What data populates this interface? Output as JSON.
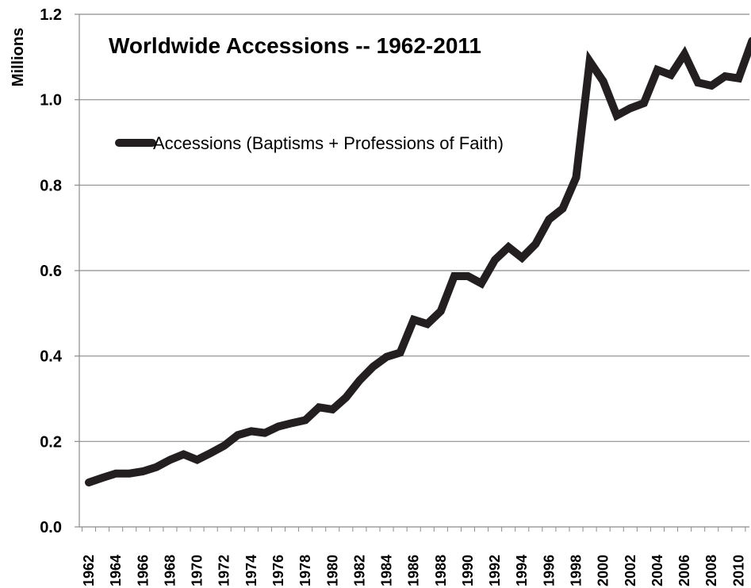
{
  "chart_data": {
    "type": "line",
    "title": "Worldwide Accessions -- 1962-2011",
    "xlabel": "",
    "ylabel": "Millions",
    "ylim": [
      0,
      1.2
    ],
    "yticks": [
      "0.0",
      "0.2",
      "0.4",
      "0.6",
      "0.8",
      "1.0",
      "1.2"
    ],
    "xticks": [
      "1962",
      "1964",
      "1966",
      "1968",
      "1970",
      "1972",
      "1974",
      "1976",
      "1978",
      "1980",
      "1982",
      "1984",
      "1986",
      "1988",
      "1990",
      "1992",
      "1994",
      "1996",
      "1998",
      "2000",
      "2002",
      "2004",
      "2006",
      "2008",
      "2010"
    ],
    "grid": "horizontal",
    "legend_position": "upper-left",
    "series_color": "#231f20",
    "x": [
      1962,
      1963,
      1964,
      1965,
      1966,
      1967,
      1968,
      1969,
      1970,
      1971,
      1972,
      1973,
      1974,
      1975,
      1976,
      1977,
      1978,
      1979,
      1980,
      1981,
      1982,
      1983,
      1984,
      1985,
      1986,
      1987,
      1988,
      1989,
      1990,
      1991,
      1992,
      1993,
      1994,
      1995,
      1996,
      1997,
      1998,
      1999,
      2000,
      2001,
      2002,
      2003,
      2004,
      2005,
      2006,
      2007,
      2008,
      2009,
      2010,
      2011
    ],
    "series": [
      {
        "name": "Accessions (Baptisms + Professions of Faith)",
        "values": [
          0.104,
          0.115,
          0.125,
          0.125,
          0.13,
          0.14,
          0.157,
          0.17,
          0.157,
          0.173,
          0.19,
          0.215,
          0.224,
          0.22,
          0.235,
          0.243,
          0.25,
          0.28,
          0.275,
          0.303,
          0.343,
          0.375,
          0.398,
          0.408,
          0.485,
          0.475,
          0.505,
          0.587,
          0.587,
          0.57,
          0.625,
          0.655,
          0.63,
          0.662,
          0.72,
          0.745,
          0.818,
          1.09,
          1.043,
          0.963,
          0.98,
          0.992,
          1.07,
          1.058,
          1.107,
          1.04,
          1.033,
          1.055,
          1.05,
          1.138
        ]
      }
    ]
  }
}
